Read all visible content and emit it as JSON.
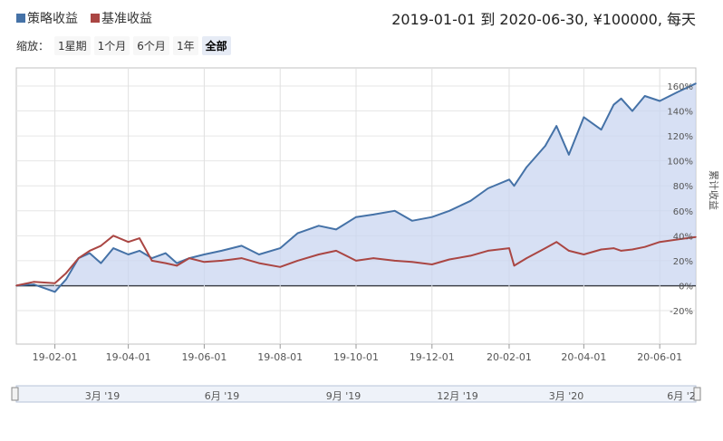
{
  "legend": {
    "strategy_label": "策略收益",
    "benchmark_label": "基准收益",
    "strategy_color": "#4572a7",
    "benchmark_color": "#aa4643"
  },
  "range_info": "2019-01-01 到 2020-06-30, ¥100000, 每天",
  "zoom": {
    "label": "缩放：",
    "buttons": [
      "1星期",
      "1个月",
      "6个月",
      "1年",
      "全部"
    ],
    "active": "全部"
  },
  "navigator": {
    "labels": [
      "3月 '19",
      "6月 '19",
      "9月 '19",
      "12月 '19",
      "3月 '20",
      "6月 '2"
    ]
  },
  "chart_data": {
    "type": "line",
    "title": "",
    "ylabel": "累计收益",
    "ylim": [
      -20,
      160
    ],
    "y_ticks": [
      "-20%",
      "0%",
      "20%",
      "40%",
      "60%",
      "80%",
      "100%",
      "120%",
      "140%",
      "160%"
    ],
    "x_ticks": [
      "19-02-01",
      "19-04-01",
      "19-06-01",
      "19-08-01",
      "19-10-01",
      "19-12-01",
      "20-02-01",
      "20-04-01",
      "20-06-01"
    ],
    "grid": true,
    "legend_position": "top-left",
    "x": [
      "2019-01-01",
      "2019-01-15",
      "2019-02-01",
      "2019-02-10",
      "2019-02-20",
      "2019-03-01",
      "2019-03-10",
      "2019-03-20",
      "2019-04-01",
      "2019-04-10",
      "2019-04-20",
      "2019-05-01",
      "2019-05-10",
      "2019-05-20",
      "2019-06-01",
      "2019-06-15",
      "2019-07-01",
      "2019-07-15",
      "2019-08-01",
      "2019-08-15",
      "2019-09-01",
      "2019-09-15",
      "2019-10-01",
      "2019-10-15",
      "2019-11-01",
      "2019-11-15",
      "2019-12-01",
      "2019-12-15",
      "2020-01-01",
      "2020-01-15",
      "2020-02-01",
      "2020-02-05",
      "2020-02-15",
      "2020-03-01",
      "2020-03-10",
      "2020-03-20",
      "2020-04-01",
      "2020-04-15",
      "2020-04-25",
      "2020-05-01",
      "2020-05-10",
      "2020-05-20",
      "2020-06-01",
      "2020-06-15",
      "2020-06-30"
    ],
    "series": [
      {
        "name": "策略收益",
        "color": "#4572a7",
        "values": [
          0,
          1,
          -5,
          5,
          22,
          26,
          18,
          30,
          25,
          28,
          22,
          26,
          18,
          22,
          25,
          28,
          32,
          25,
          30,
          42,
          48,
          45,
          55,
          57,
          60,
          52,
          55,
          60,
          68,
          78,
          85,
          80,
          95,
          112,
          128,
          105,
          135,
          125,
          145,
          150,
          140,
          152,
          148,
          155,
          162
        ]
      },
      {
        "name": "基准收益",
        "color": "#aa4643",
        "values": [
          0,
          3,
          2,
          10,
          22,
          28,
          32,
          40,
          35,
          38,
          20,
          18,
          16,
          22,
          19,
          20,
          22,
          18,
          15,
          20,
          25,
          28,
          20,
          22,
          20,
          19,
          17,
          21,
          24,
          28,
          30,
          16,
          22,
          30,
          35,
          28,
          25,
          29,
          30,
          28,
          29,
          31,
          35,
          37,
          39
        ]
      }
    ]
  }
}
